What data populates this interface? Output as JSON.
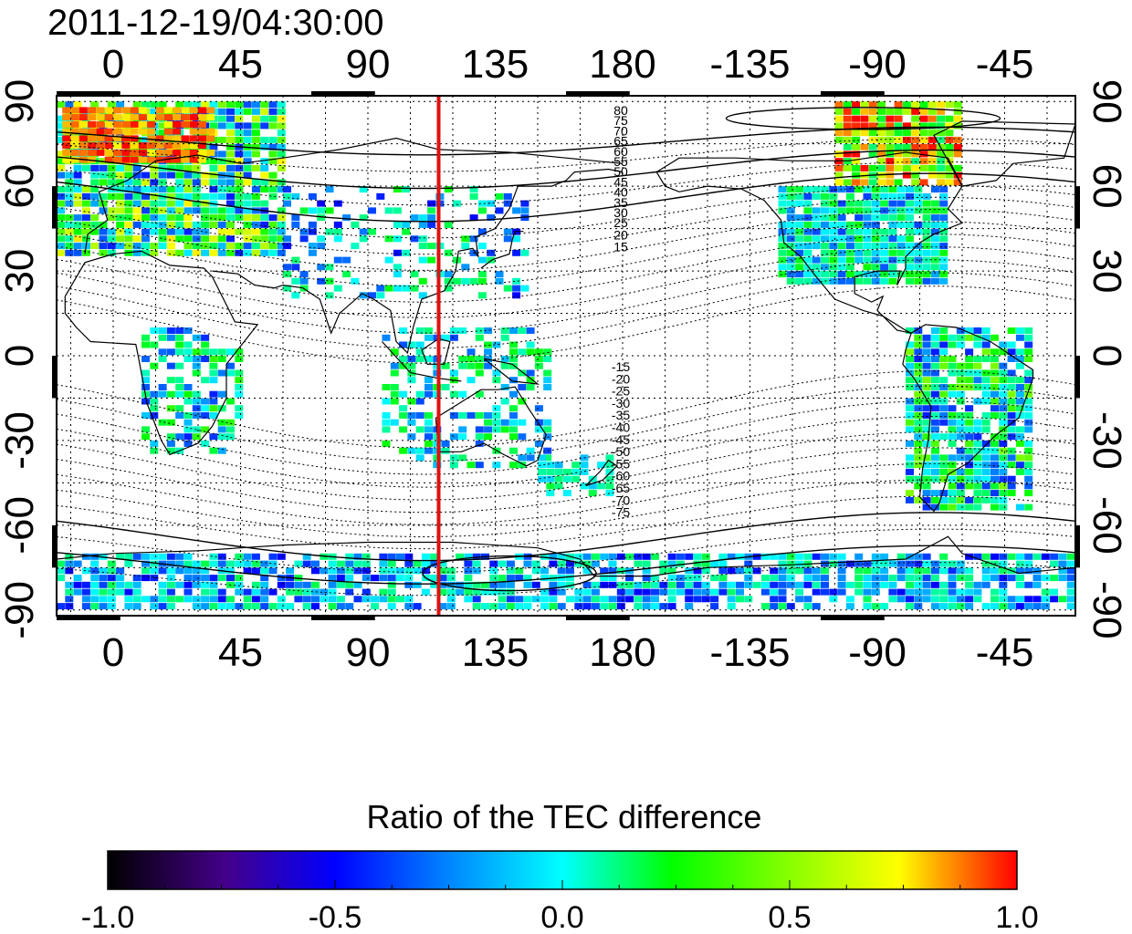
{
  "title": "2011-12-19/04:30:00",
  "map": {
    "lon_ticks_top": [
      "0",
      "45",
      "90",
      "135",
      "180",
      "-135",
      "-90",
      "-45"
    ],
    "lon_ticks_bottom": [
      "0",
      "45",
      "90",
      "135",
      "180",
      "-135",
      "-90",
      "-45"
    ],
    "lat_ticks_left": [
      "90",
      "60",
      "30",
      "0",
      "-30",
      "-60",
      "-90"
    ],
    "lat_ticks_right": [
      "90",
      "60",
      "30",
      "0",
      "-30",
      "-60",
      "-90"
    ],
    "lon_tick_values": [
      0,
      45,
      90,
      135,
      180,
      225,
      270,
      315
    ],
    "lat_tick_values": [
      90,
      60,
      30,
      0,
      -30,
      -60,
      -90
    ],
    "lon_range": [
      -20,
      340
    ],
    "lat_range": [
      -92,
      92
    ],
    "marker_longitude": 115,
    "marker_color": "#dd1111",
    "magnetic_contour_labels_north": [
      "80",
      "75",
      "70",
      "65",
      "60",
      "55",
      "50",
      "45",
      "40",
      "35",
      "30",
      "25",
      "20",
      "15"
    ],
    "magnetic_contour_labels_south": [
      "-15",
      "-20",
      "-25",
      "-30",
      "-35",
      "-40",
      "-45",
      "-50",
      "-55",
      "-60",
      "-65",
      "-70",
      "-75"
    ]
  },
  "colorbar": {
    "title": "Ratio of the TEC difference",
    "tick_labels": [
      "-1.0",
      "-0.5",
      "0.0",
      "0.5",
      "1.0"
    ],
    "range": [
      -1.0,
      1.0
    ],
    "colormap": [
      "#000000",
      "#44008a",
      "#0000ff",
      "#00ffff",
      "#00ff00",
      "#ffff00",
      "#ff0000"
    ]
  }
}
